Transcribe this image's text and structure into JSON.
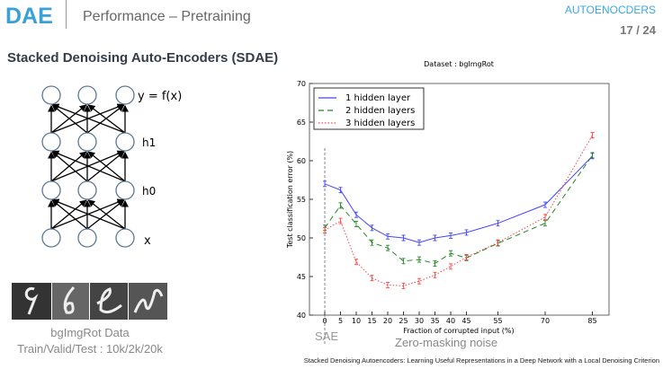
{
  "header": {
    "logo": "DAE",
    "title": "Performance – Pretraining",
    "section": "AUTOENOCDERS",
    "page": "17 / 24"
  },
  "subtitle": "Stacked Denoising Auto-Encoders (SDAE)",
  "network": {
    "labels": [
      "y = f(x)",
      "h1",
      "h0",
      "x"
    ]
  },
  "dataset_box": {
    "caption": "bgImgRot Data",
    "split": "Train/Valid/Test : 10k/2k/20k"
  },
  "annotations": {
    "sae": "SAE",
    "noise": "Zero-masking noise"
  },
  "citation": "Stacked Denoising Autoencoders: Learning Useful Representations in a Deep Network with a Local Denoising Criterion",
  "chart_data": {
    "type": "line",
    "title": "Dataset : bgImgRot",
    "xlabel": "Fraction of corrupted input (%)",
    "ylabel": "Test classification error (%)",
    "ylim": [
      40,
      70
    ],
    "yticks": [
      40,
      45,
      50,
      55,
      60,
      65,
      70
    ],
    "x": [
      0,
      5,
      10,
      15,
      20,
      25,
      30,
      35,
      40,
      45,
      55,
      70,
      85
    ],
    "legend_position": "top-left",
    "series": [
      {
        "name": "1 hidden layer",
        "color": "#4444ff",
        "dash": "",
        "values": [
          57,
          56.2,
          53,
          51.3,
          50.2,
          50,
          49.4,
          50,
          50.3,
          50.7,
          51.9,
          54.3,
          60.6
        ]
      },
      {
        "name": "2 hidden layers",
        "color": "#228822",
        "dash": "6,4",
        "values": [
          51.3,
          54.2,
          51.8,
          49.4,
          48.7,
          47,
          47.2,
          46.7,
          48,
          47.4,
          49.3,
          51.9,
          60.7
        ]
      },
      {
        "name": "3 hidden layers",
        "color": "#ff4444",
        "dash": "1.5,2",
        "values": [
          51,
          52.2,
          46.9,
          44.8,
          43.9,
          43.8,
          44.4,
          45.2,
          46.3,
          47.5,
          49.4,
          52.7,
          63.3
        ]
      }
    ]
  }
}
